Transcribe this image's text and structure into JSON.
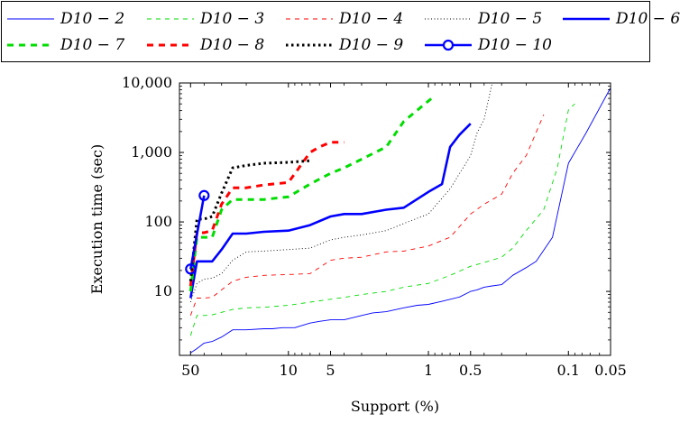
{
  "chart_data": {
    "type": "line",
    "xlabel": "Support (%)",
    "ylabel": "Execution time (sec)",
    "x_scale": "log-reversed",
    "y_scale": "log",
    "xlim": [
      60,
      0.05
    ],
    "ylim": [
      1.2,
      10000
    ],
    "x_ticks": [
      50,
      10,
      5,
      1,
      0.5,
      0.1,
      0.05
    ],
    "x_tick_labels": [
      "50",
      "10",
      "5",
      "1",
      "0.5",
      "0.1",
      "0.05"
    ],
    "y_ticks": [
      10,
      100,
      1000,
      10000
    ],
    "y_tick_labels": [
      "10",
      "100",
      "1,000",
      "10,000"
    ],
    "grid": false,
    "legend_position": "top",
    "series": [
      {
        "name": "D10 − 2",
        "color": "#0000ff",
        "style": "thin-solid",
        "x": [
          50,
          45,
          40,
          35,
          30,
          25,
          20,
          15,
          13,
          11,
          9,
          7,
          6,
          5,
          4,
          3,
          2.5,
          2,
          1.5,
          1.2,
          1,
          0.8,
          0.6,
          0.5,
          0.45,
          0.4,
          0.35,
          0.3,
          0.25,
          0.2,
          0.17,
          0.13,
          0.1,
          0.075,
          0.05
        ],
        "y": [
          1.3,
          1.5,
          1.8,
          1.9,
          2.2,
          2.8,
          2.8,
          2.9,
          2.9,
          3,
          3,
          3.5,
          3.7,
          3.9,
          3.9,
          4.5,
          4.9,
          5.1,
          5.8,
          6.3,
          6.5,
          7.2,
          8.3,
          10,
          10.5,
          11.5,
          12,
          12.5,
          17,
          22,
          27,
          60,
          700,
          1900,
          8500
        ]
      },
      {
        "name": "D10 − 3",
        "color": "#00dd00",
        "style": "thin-dashed",
        "x": [
          50,
          45,
          40,
          35,
          30,
          25,
          20,
          15,
          10,
          7,
          5,
          4,
          3,
          2,
          1.5,
          1,
          0.7,
          0.5,
          0.4,
          0.3,
          0.25,
          0.2,
          0.15,
          0.12,
          0.1,
          0.09
        ],
        "y": [
          2.3,
          4.5,
          4.5,
          4.6,
          5,
          5.5,
          5.8,
          5.9,
          6.3,
          7,
          7.7,
          8.2,
          9,
          10,
          11.5,
          13,
          17,
          23,
          26,
          31,
          42,
          75,
          150,
          600,
          4100,
          5000
        ]
      },
      {
        "name": "D10 − 4",
        "color": "#ff0000",
        "style": "thin-dashed",
        "x": [
          50,
          45,
          40,
          35,
          30,
          25,
          20,
          15,
          10,
          7,
          5,
          4,
          3,
          2,
          1.5,
          1,
          0.7,
          0.5,
          0.4,
          0.3,
          0.25,
          0.2,
          0.15
        ],
        "y": [
          4.5,
          8,
          8,
          8.2,
          10.5,
          14,
          16,
          17,
          17.5,
          18,
          28,
          30,
          31,
          37,
          38,
          45,
          60,
          130,
          180,
          250,
          500,
          900,
          3500
        ]
      },
      {
        "name": "D10 − 5",
        "color": "#000000",
        "style": "dotted",
        "x": [
          50,
          45,
          40,
          35,
          30,
          25,
          20,
          15,
          10,
          7,
          5,
          4,
          3,
          2,
          1.5,
          1,
          0.7,
          0.5,
          0.45,
          0.4,
          0.35
        ],
        "y": [
          7,
          13,
          15,
          15.5,
          18,
          28,
          37,
          38,
          40,
          42,
          55,
          60,
          65,
          75,
          95,
          130,
          300,
          900,
          1900,
          3000,
          10000
        ]
      },
      {
        "name": "D10 − 6",
        "color": "#0000ff",
        "style": "thick-solid",
        "x": [
          50,
          45,
          40,
          35,
          30,
          25,
          20,
          15,
          10,
          7,
          5,
          4,
          3,
          2,
          1.5,
          1,
          0.8,
          0.7,
          0.6,
          0.5
        ],
        "y": [
          8,
          27,
          27,
          27,
          40,
          68,
          68,
          72,
          75,
          90,
          120,
          130,
          130,
          150,
          160,
          270,
          350,
          1200,
          1800,
          2600
        ]
      },
      {
        "name": "D10 − 7",
        "color": "#00dd00",
        "style": "thick-dashed",
        "x": [
          50,
          45,
          40,
          35,
          30,
          25,
          20,
          15,
          10,
          7,
          5,
          4,
          3,
          2,
          1.5,
          1,
          0.95
        ],
        "y": [
          10,
          60,
          60,
          60,
          150,
          210,
          210,
          210,
          230,
          350,
          500,
          600,
          800,
          1200,
          2800,
          5500,
          6000
        ]
      },
      {
        "name": "D10 − 8",
        "color": "#ff0000",
        "style": "thick-dashed",
        "x": [
          50,
          45,
          40,
          35,
          30,
          25,
          20,
          15,
          10,
          7,
          6,
          5,
          4
        ],
        "y": [
          12,
          70,
          70,
          75,
          180,
          310,
          310,
          340,
          370,
          1000,
          1200,
          1400,
          1400
        ]
      },
      {
        "name": "D10 − 9",
        "color": "#000000",
        "style": "thick-dotted",
        "x": [
          50,
          45,
          40,
          35,
          30,
          25,
          20,
          15,
          10,
          7
        ],
        "y": [
          14,
          110,
          110,
          120,
          260,
          600,
          650,
          700,
          720,
          760
        ]
      },
      {
        "name": "D10 − 10",
        "color": "#0000ff",
        "style": "thick-solid-marker",
        "x": [
          50,
          40
        ],
        "y": [
          21,
          240
        ]
      }
    ]
  }
}
